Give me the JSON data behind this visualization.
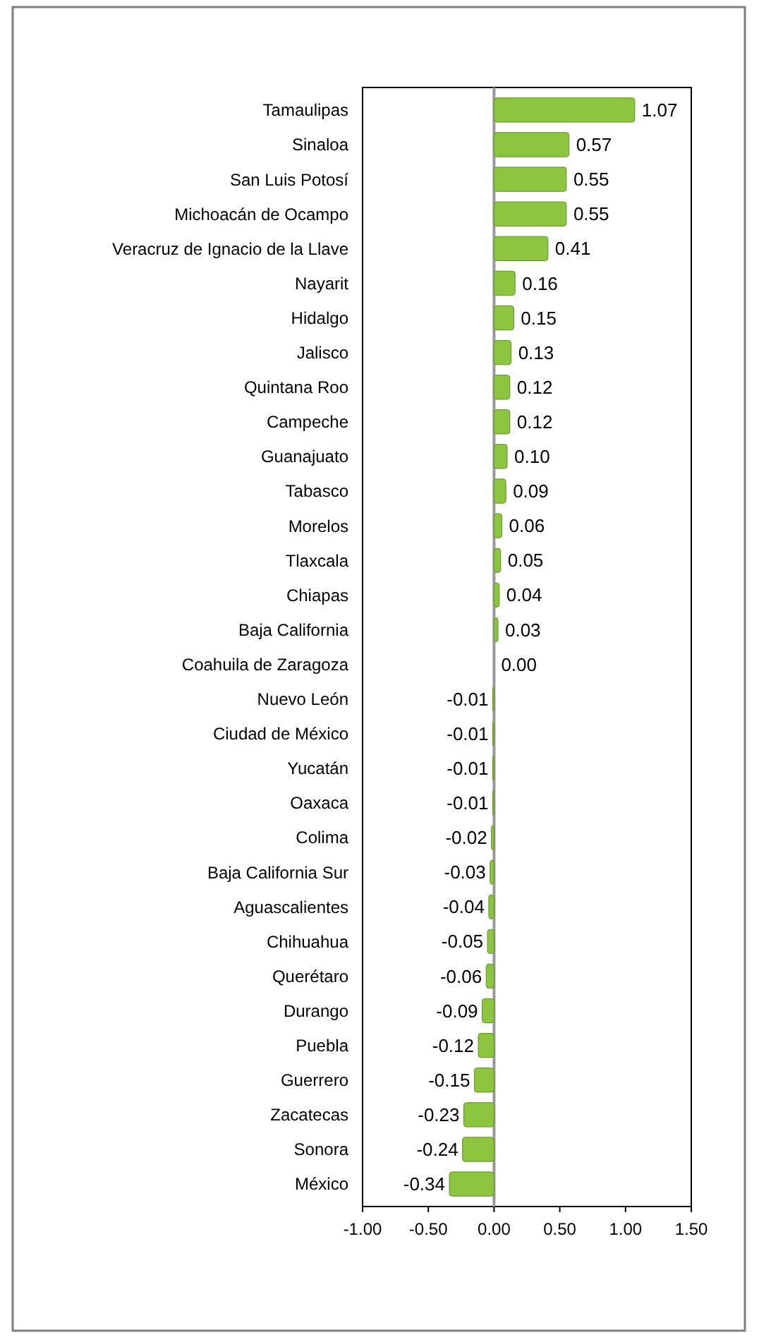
{
  "chart_data": {
    "type": "bar",
    "orientation": "horizontal",
    "categories": [
      "Tamaulipas",
      "Sinaloa",
      "San Luis Potosí",
      "Michoacán de Ocampo",
      "Veracruz de Ignacio de la Llave",
      "Nayarit",
      "Hidalgo",
      "Jalisco",
      "Quintana Roo",
      "Campeche",
      "Guanajuato",
      "Tabasco",
      "Morelos",
      "Tlaxcala",
      "Chiapas",
      "Baja California",
      "Coahuila de Zaragoza",
      "Nuevo León",
      "Ciudad de México",
      "Yucatán",
      "Oaxaca",
      "Colima",
      "Baja California Sur",
      "Aguascalientes",
      "Chihuahua",
      "Querétaro",
      "Durango",
      "Puebla",
      "Guerrero",
      "Zacatecas",
      "Sonora",
      "México"
    ],
    "values": [
      1.07,
      0.57,
      0.55,
      0.55,
      0.41,
      0.16,
      0.15,
      0.13,
      0.12,
      0.12,
      0.1,
      0.09,
      0.06,
      0.05,
      0.04,
      0.03,
      0.0,
      -0.01,
      -0.01,
      -0.01,
      -0.01,
      -0.02,
      -0.03,
      -0.04,
      -0.05,
      -0.06,
      -0.09,
      -0.12,
      -0.15,
      -0.23,
      -0.24,
      -0.34
    ],
    "value_labels": [
      "1.07",
      "0.57",
      "0.55",
      "0.55",
      "0.41",
      "0.16",
      "0.15",
      "0.13",
      "0.12",
      "0.12",
      "0.10",
      "0.09",
      "0.06",
      "0.05",
      "0.04",
      "0.03",
      "0.00",
      "-0.01",
      "-0.01",
      "-0.01",
      "-0.01",
      "-0.02",
      "-0.03",
      "-0.04",
      "-0.05",
      "-0.06",
      "-0.09",
      "-0.12",
      "-0.15",
      "-0.23",
      "-0.24",
      "-0.34"
    ],
    "color": "#8cc63f",
    "xlim": [
      -1,
      1.5
    ],
    "xticks": [
      {
        "value": -1,
        "label": "-1.00"
      },
      {
        "value": -0.5,
        "label": "-0.50"
      },
      {
        "value": 0,
        "label": "0.00"
      },
      {
        "value": 0.5,
        "label": "0.50"
      },
      {
        "value": 1,
        "label": "1.00"
      },
      {
        "value": 1.5,
        "label": "1.50"
      }
    ]
  }
}
